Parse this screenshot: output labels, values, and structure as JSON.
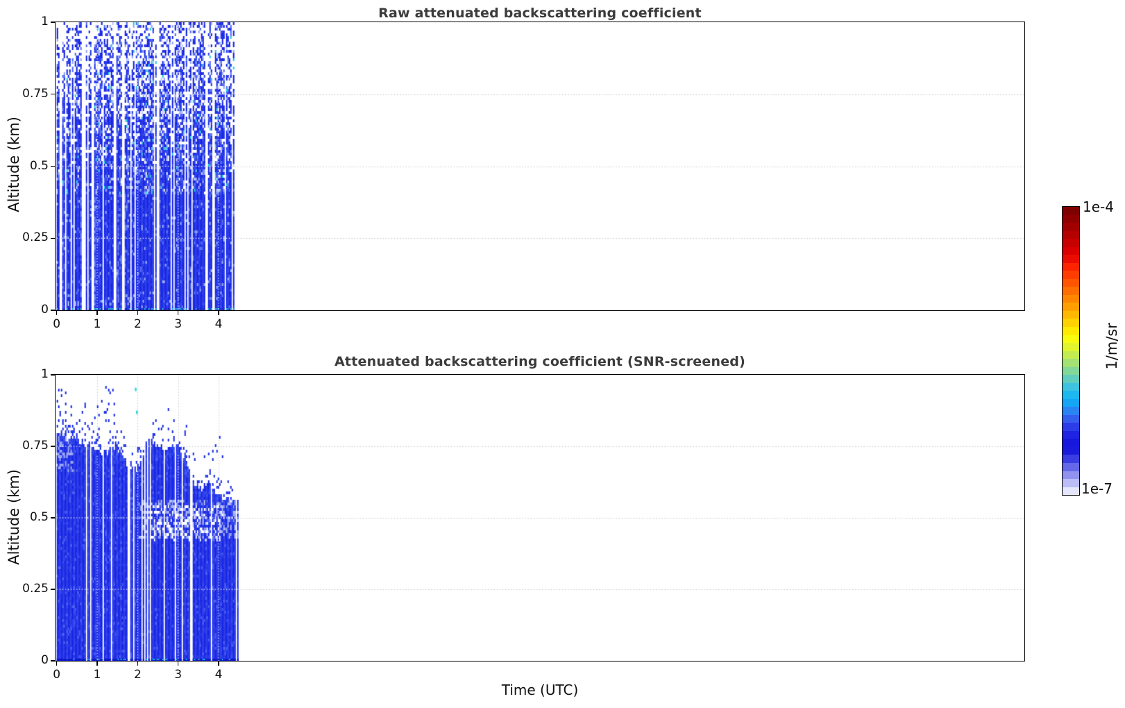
{
  "axes": {
    "xlabel": "Time (UTC)",
    "ylabel": "Altitude (km)",
    "xtick_labels": [
      "0",
      "1",
      "2",
      "3",
      "4"
    ],
    "xtick_values": [
      0,
      1,
      2,
      3,
      4
    ],
    "ytick_labels": [
      "1",
      "0.75",
      "0.5",
      "0.25",
      "0"
    ],
    "ytick_values": [
      1,
      0.75,
      0.5,
      0.25,
      0
    ]
  },
  "colorbar": {
    "top_label": "1e-4",
    "bottom_label": "1e-7",
    "units": "1/m/sr",
    "scale": "log",
    "min": 1e-07,
    "max": 0.0001,
    "colors": [
      "#7f0000",
      "#900000",
      "#a20000",
      "#b40000",
      "#c70000",
      "#da0000",
      "#ec0b00",
      "#fa2400",
      "#ff3d00",
      "#ff5500",
      "#ff6e00",
      "#ff8700",
      "#ffa000",
      "#ffb900",
      "#ffd200",
      "#ffeb00",
      "#f7fb10",
      "#e0f52e",
      "#c2ec50",
      "#a3e273",
      "#82d898",
      "#60cdbd",
      "#3dc3e0",
      "#1cb8f0",
      "#14a5f5",
      "#2a84f2",
      "#345eee",
      "#2c3ce8",
      "#1f24e2",
      "#1717de",
      "#1a1ada",
      "#3a3de2",
      "#6468e8",
      "#8f93ef",
      "#babdf6",
      "#e4e6fc"
    ]
  },
  "palette": {
    "deep": "#0a1ae2",
    "deep2": "#0d22e8",
    "mid": "#2038ec",
    "mid2": "#1c30ec",
    "light": "#4a66f2",
    "pale": "#8ea0f4",
    "lavender": "#b8c2fa",
    "cyan": "#1ac8da",
    "teal": "#38d6b2",
    "bottom_dark": "#0a12c8",
    "speck_blue": "#1126e6",
    "hole_light": "#8393ee",
    "hole_pale": "#aab4f4",
    "grid_gray": "#c2c2c2"
  },
  "chart_data": [
    {
      "type": "heatmap",
      "title": "Raw attenuated backscattering coefficient",
      "xlabel": "Time (UTC)",
      "ylabel": "Altitude (km)",
      "xlim": [
        0,
        24
      ],
      "ylim": [
        0,
        1
      ],
      "xticks": [
        0,
        1,
        2,
        3,
        4
      ],
      "yticks": [
        0,
        0.25,
        0.5,
        0.75,
        1
      ],
      "grid": true,
      "units": "1/m/sr",
      "value_scale": "log",
      "value_range": [
        1e-07,
        0.0001
      ],
      "data_time_range": [
        0,
        4.48
      ],
      "pattern": {
        "kind": "noisy-raw-backscatter",
        "solid_blue_below_km": 0.4,
        "noise_fill_fraction_at_top": 0.42,
        "missing_profile_gap_columns": 46,
        "surface_cyan_specks": true,
        "lowlevel_lavender_patch_time": [
          0.2,
          0.52
        ]
      },
      "seed": 7
    },
    {
      "type": "heatmap",
      "title": "Attenuated backscattering coefficient (SNR-screened)",
      "xlabel": "Time (UTC)",
      "ylabel": "Altitude (km)",
      "xlim": [
        0,
        24
      ],
      "ylim": [
        0,
        1
      ],
      "xticks": [
        0,
        1,
        2,
        3,
        4
      ],
      "yticks": [
        0,
        0.25,
        0.5,
        0.75,
        1
      ],
      "grid": true,
      "units": "1/m/sr",
      "value_scale": "log",
      "value_range": [
        1e-07,
        0.0001
      ],
      "data_time_range": [
        0,
        4.48
      ],
      "cloud_top_envelope": {
        "t": [
          0.0,
          0.15,
          0.3,
          0.45,
          0.6,
          0.75,
          0.9,
          1.05,
          1.2,
          1.35,
          1.5,
          1.65,
          1.8,
          1.95,
          2.1,
          2.25,
          2.4,
          2.55,
          2.7,
          2.85,
          3.0,
          3.15,
          3.3,
          3.45,
          3.6,
          3.75,
          3.9,
          4.05,
          4.2,
          4.35,
          4.48
        ],
        "altitude_km": [
          0.8,
          0.79,
          0.77,
          0.78,
          0.76,
          0.75,
          0.73,
          0.74,
          0.72,
          0.75,
          0.74,
          0.71,
          0.68,
          0.67,
          0.71,
          0.78,
          0.76,
          0.75,
          0.74,
          0.75,
          0.74,
          0.7,
          0.65,
          0.61,
          0.6,
          0.62,
          0.59,
          0.57,
          0.56,
          0.56,
          0.55
        ]
      },
      "pattern": {
        "kind": "snr-screened-backscatter",
        "missing_profile_gap_columns": 38,
        "specks_above_envelope": true,
        "extra_speck_region_time": [
          0,
          1.5
        ],
        "white_holes": {
          "time": [
            2.3,
            4.1
          ],
          "altitude": [
            0.42,
            0.54
          ]
        },
        "pale_band": {
          "time": [
            2.0,
            4.48
          ],
          "altitude": [
            0.43,
            0.56
          ]
        },
        "surface_cyan_specks": true,
        "isolated_cyan_specks": [
          {
            "t": 1.93,
            "altitude": 0.95
          },
          {
            "t": 1.96,
            "altitude": 0.87
          }
        ]
      },
      "seed": 11
    }
  ]
}
